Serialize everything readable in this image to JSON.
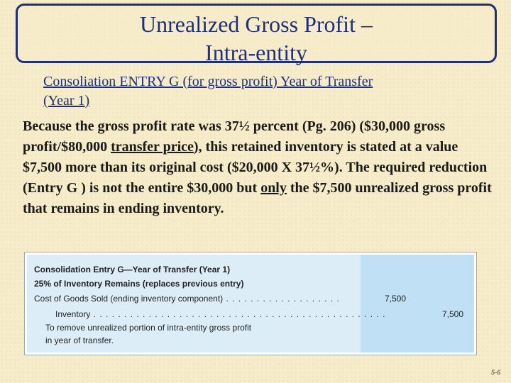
{
  "title": {
    "line1": "Unrealized Gross Profit –",
    "line2": "Intra-entity"
  },
  "subtitle": {
    "line1": "Consoliation ENTRY G (for gross profit)  Year of Transfer",
    "line2": "(Year 1)"
  },
  "paragraph": {
    "part1": "Because the gross profit rate was 37½ percent (Pg. 206) ($30,000 gross profit/$80,000 ",
    "underlined1": "transfer price",
    "part2": "), this retained inventory is stated at a value $7,500 more than its original cost ($20,000 X 37½%). The required reduction (Entry G ) is not the entire $30,000  but ",
    "underlined2": "only",
    "part3": " the $7,500 unrealized gross profit that remains in ending inventory."
  },
  "entry": {
    "heading": "Consolidation Entry G—Year of Transfer (Year 1)",
    "subheading": "25% of Inventory Remains (replaces previous entry)",
    "debit_account": "Cost of Goods Sold (ending inventory component)",
    "debit_dots": " . . . . . . . . . . . . . . . . . . .",
    "debit_amount": "7,500",
    "credit_account": "Inventory",
    "credit_dots": " . . . . . . . . . . . . . . . . . . . . . . . . . . . . . . . . . . . . . . . . . . . . . . . .",
    "credit_amount": "7,500",
    "note_line1": "To remove unrealized portion of intra-entity gross profit",
    "note_line2": "in year of transfer."
  },
  "slide_number": "5-6"
}
